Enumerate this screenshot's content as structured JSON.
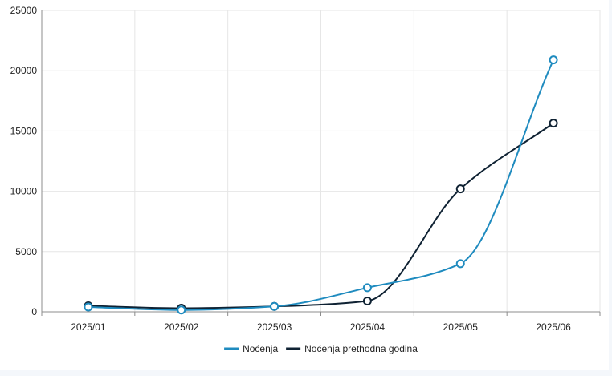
{
  "chart_data": {
    "type": "line",
    "title": "",
    "xlabel": "",
    "ylabel": "",
    "categories": [
      "2025/01",
      "2025/02",
      "2025/03",
      "2025/04",
      "2025/05",
      "2025/06"
    ],
    "ylim": [
      0,
      25000
    ],
    "yticks": [
      0,
      5000,
      10000,
      15000,
      20000,
      25000
    ],
    "grid": true,
    "legend_position": "bottom-center",
    "series": [
      {
        "name": "Noćenja",
        "color": "#1f8bbf",
        "values": [
          400,
          150,
          450,
          2000,
          4000,
          20900
        ]
      },
      {
        "name": "Noćenja prethodna godina",
        "color": "#0f2233",
        "values": [
          500,
          300,
          450,
          900,
          10200,
          15650
        ]
      }
    ]
  }
}
